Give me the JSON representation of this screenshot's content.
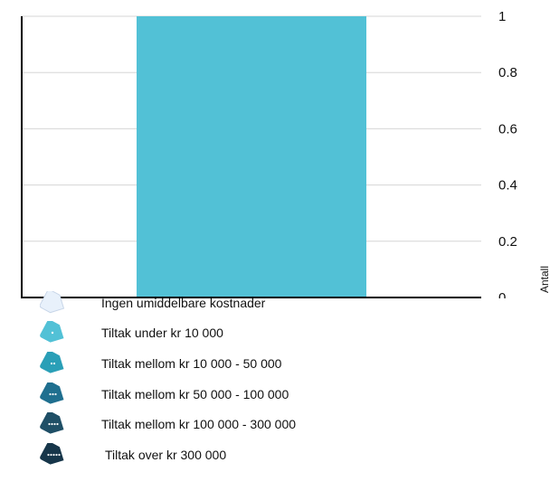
{
  "chart_data": {
    "type": "bar",
    "categories": [
      ""
    ],
    "values": [
      1
    ],
    "title": "",
    "xlabel": "",
    "ylabel": "Antall",
    "ylim": [
      0,
      1
    ],
    "yticks": [
      "0",
      "0.2",
      "0.4",
      "0.6",
      "0.8",
      "1"
    ],
    "y_axis_side": "right",
    "grid": true,
    "legend_position": "bottom-left",
    "bar_color": "#52c1d6",
    "legend": [
      {
        "label": "Ingen umiddelbare kostnader",
        "icon": "tag-white-icon",
        "color": "#e8f1fb"
      },
      {
        "label": "Tiltak under kr 10 000",
        "icon": "tag-light-blue-icon",
        "color": "#52c1d6"
      },
      {
        "label": "Tiltak mellom kr 10 000 - 50 000",
        "icon": "tag-teal-icon",
        "color": "#2a9fb7"
      },
      {
        "label": "Tiltak mellom kr 50 000 - 100 000",
        "icon": "tag-blue-icon",
        "color": "#1f6f8f"
      },
      {
        "label": "Tiltak mellom kr 100 000 - 300 000",
        "icon": "tag-dark-blue-icon",
        "color": "#1f4f66"
      },
      {
        "label": "Tiltak over kr  300 000",
        "icon": "tag-navy-icon",
        "color": "#17364a"
      }
    ]
  }
}
